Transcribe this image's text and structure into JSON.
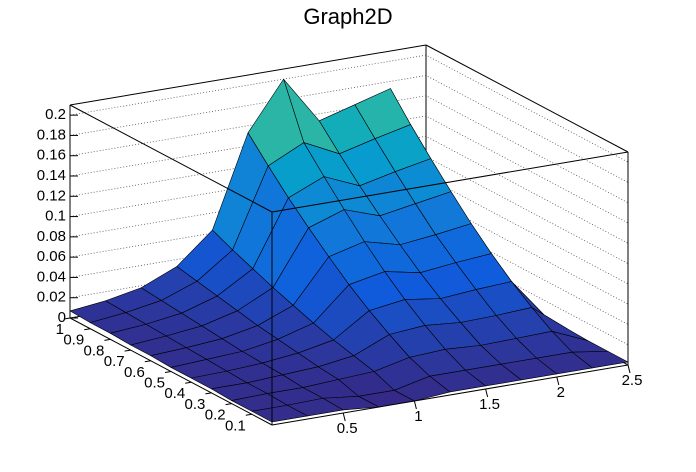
{
  "chart_data": {
    "type": "surface",
    "title": "Graph2D",
    "x": [
      0,
      0.25,
      0.5,
      0.75,
      1,
      1.25,
      1.5,
      1.75,
      2,
      2.25,
      2.5
    ],
    "y": [
      0,
      0.1,
      0.2,
      0.3,
      0.4,
      0.5,
      0.6,
      0.7,
      0.8,
      0.9,
      1
    ],
    "z": [
      [
        0.003,
        0.003,
        0.003,
        0,
        0,
        0.003,
        0.003,
        0.003,
        0.003,
        0.003,
        0.003
      ],
      [
        0.003,
        0.003,
        0.004,
        0,
        0,
        0.008,
        0.008,
        0.008,
        0.008,
        0.008,
        0.003
      ],
      [
        0.003,
        0.004,
        0.004,
        0.006,
        0.008,
        0.016,
        0.018,
        0.016,
        0.017,
        0.018,
        0.003
      ],
      [
        0.004,
        0.004,
        0.006,
        0.008,
        0.013,
        0.028,
        0.031,
        0.028,
        0.029,
        0.031,
        0.004
      ],
      [
        0.004,
        0.005,
        0.007,
        0.011,
        0.018,
        0.041,
        0.046,
        0.041,
        0.044,
        0.046,
        0.004
      ],
      [
        0.004,
        0.006,
        0.008,
        0.014,
        0.024,
        0.056,
        0.063,
        0.056,
        0.06,
        0.063,
        0.004
      ],
      [
        0.005,
        0.007,
        0.01,
        0.017,
        0.031,
        0.073,
        0.082,
        0.073,
        0.077,
        0.082,
        0.005
      ],
      [
        0.005,
        0.008,
        0.012,
        0.021,
        0.038,
        0.091,
        0.103,
        0.091,
        0.097,
        0.103,
        0.005
      ],
      [
        0.006,
        0.009,
        0.014,
        0.025,
        0.046,
        0.11,
        0.125,
        0.11,
        0.118,
        0.125,
        0.006
      ],
      [
        0.006,
        0.01,
        0.016,
        0.029,
        0.054,
        0.131,
        0.148,
        0.131,
        0.14,
        0.148,
        0.006
      ],
      [
        0.007,
        0.011,
        0.018,
        0.033,
        0.063,
        0.153,
        0.2,
        0.153,
        0.163,
        0.173,
        0.007
      ]
    ],
    "xlim": [
      0,
      2.5
    ],
    "ylim": [
      0,
      1
    ],
    "zlim": [
      0,
      0.21
    ],
    "xticks": [
      0.5,
      1,
      1.5,
      2,
      2.5
    ],
    "yticks": [
      0.1,
      0.2,
      0.3,
      0.4,
      0.5,
      0.6,
      0.7,
      0.8,
      0.9,
      1
    ],
    "zticks": [
      0,
      0.02,
      0.04,
      0.06,
      0.08,
      0.1,
      0.12,
      0.14,
      0.16,
      0.18,
      0.2
    ],
    "grid": true
  }
}
